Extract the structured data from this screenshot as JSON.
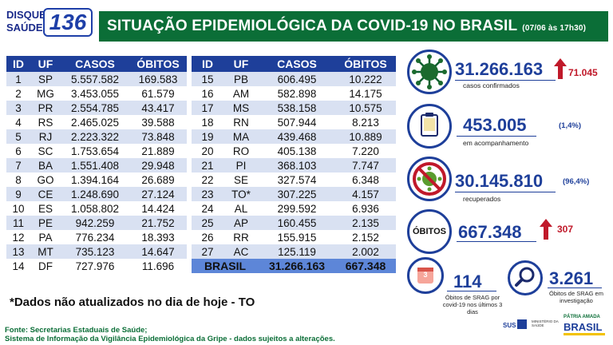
{
  "logo": {
    "line1": "DISQUE",
    "line2": "SAÚDE",
    "number": "136"
  },
  "title": {
    "text": "SITUAÇÃO EPIDEMIOLÓGICA DA COVID-19 NO BRASIL",
    "date": "(07/06 às 17h30)"
  },
  "table_headers": [
    "ID",
    "UF",
    "CASOS",
    "ÓBITOS"
  ],
  "table_left": [
    {
      "id": "1",
      "uf": "SP",
      "casos": "5.557.582",
      "obitos": "169.583"
    },
    {
      "id": "2",
      "uf": "MG",
      "casos": "3.453.055",
      "obitos": "61.579"
    },
    {
      "id": "3",
      "uf": "PR",
      "casos": "2.554.785",
      "obitos": "43.417"
    },
    {
      "id": "4",
      "uf": "RS",
      "casos": "2.465.025",
      "obitos": "39.588"
    },
    {
      "id": "5",
      "uf": "RJ",
      "casos": "2.223.322",
      "obitos": "73.848"
    },
    {
      "id": "6",
      "uf": "SC",
      "casos": "1.753.654",
      "obitos": "21.889"
    },
    {
      "id": "7",
      "uf": "BA",
      "casos": "1.551.408",
      "obitos": "29.948"
    },
    {
      "id": "8",
      "uf": "GO",
      "casos": "1.394.164",
      "obitos": "26.689"
    },
    {
      "id": "9",
      "uf": "CE",
      "casos": "1.248.690",
      "obitos": "27.124"
    },
    {
      "id": "10",
      "uf": "ES",
      "casos": "1.058.802",
      "obitos": "14.424"
    },
    {
      "id": "11",
      "uf": "PE",
      "casos": "942.259",
      "obitos": "21.752"
    },
    {
      "id": "12",
      "uf": "PA",
      "casos": "776.234",
      "obitos": "18.393"
    },
    {
      "id": "13",
      "uf": "MT",
      "casos": "735.123",
      "obitos": "14.647"
    },
    {
      "id": "14",
      "uf": "DF",
      "casos": "727.976",
      "obitos": "11.696"
    }
  ],
  "table_right": [
    {
      "id": "15",
      "uf": "PB",
      "casos": "606.495",
      "obitos": "10.222"
    },
    {
      "id": "16",
      "uf": "AM",
      "casos": "582.898",
      "obitos": "14.175"
    },
    {
      "id": "17",
      "uf": "MS",
      "casos": "538.158",
      "obitos": "10.575"
    },
    {
      "id": "18",
      "uf": "RN",
      "casos": "507.944",
      "obitos": "8.213"
    },
    {
      "id": "19",
      "uf": "MA",
      "casos": "439.468",
      "obitos": "10.889"
    },
    {
      "id": "20",
      "uf": "RO",
      "casos": "405.138",
      "obitos": "7.220"
    },
    {
      "id": "21",
      "uf": "PI",
      "casos": "368.103",
      "obitos": "7.747"
    },
    {
      "id": "22",
      "uf": "SE",
      "casos": "327.574",
      "obitos": "6.348"
    },
    {
      "id": "23",
      "uf": "TO*",
      "casos": "307.225",
      "obitos": "4.157"
    },
    {
      "id": "24",
      "uf": "AL",
      "casos": "299.592",
      "obitos": "6.936"
    },
    {
      "id": "25",
      "uf": "AP",
      "casos": "160.455",
      "obitos": "2.135"
    },
    {
      "id": "26",
      "uf": "RR",
      "casos": "155.915",
      "obitos": "2.152"
    },
    {
      "id": "27",
      "uf": "AC",
      "casos": "125.119",
      "obitos": "2.002"
    }
  ],
  "total": {
    "label": "BRASIL",
    "casos": "31.266.163",
    "obitos": "667.348"
  },
  "note": "*Dados não atualizados no dia de hoje - TO",
  "source": {
    "line1": "Fonte: Secretarias Estaduais de Saúde;",
    "line2": "Sistema de Informação da Vigilância Epidemiológica da Gripe - dados sujeitos a alterações."
  },
  "stats": {
    "confirmed": {
      "value": "31.266.163",
      "delta": "71.045",
      "caption": "casos confirmados",
      "icon": "virus-icon"
    },
    "monitoring": {
      "value": "453.005",
      "pct": "(1,4%)",
      "caption": "em acompanhamento",
      "icon": "clipboard-icon"
    },
    "recovered": {
      "value": "30.145.810",
      "pct": "(96,4%)",
      "caption": "recuperados",
      "icon": "no-virus-icon"
    },
    "deaths": {
      "label": "ÓBITOS",
      "value": "667.348",
      "delta": "307"
    },
    "srag_deaths": {
      "value": "114",
      "caption": "Óbitos de SRAG por covid-19 nos últimos 3 dias",
      "icon": "calendar-icon",
      "badge": "3"
    },
    "srag_investigation": {
      "value": "3.261",
      "caption": "Óbitos de SRAG em investigação",
      "icon": "magnifier-icon"
    }
  },
  "footer": {
    "sus": "SUS",
    "ministry": "MINISTÉRIO DA SAÚDE",
    "brasil": "BRASIL",
    "motto": "PÁTRIA AMADA"
  },
  "colors": {
    "green": "#0b6e37",
    "blue": "#1e3f9a",
    "red": "#c0192a",
    "row_alt": "#d9e1f2",
    "total_row": "#5d86d8"
  }
}
